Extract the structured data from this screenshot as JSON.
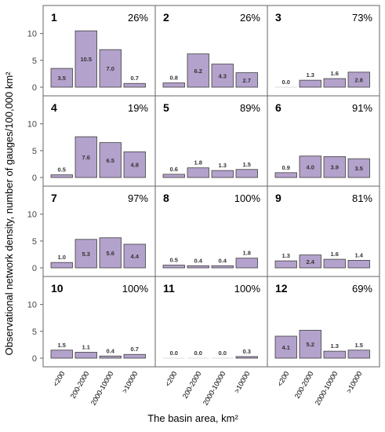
{
  "chart_data": {
    "type": "bar",
    "ylabel": "Observational network density, number of gauges/100,000 km²",
    "xlabel": "The basin area, km²",
    "categories": [
      "<200",
      "200-2000",
      "2000-10000",
      ">10000"
    ],
    "ylim": [
      0,
      12
    ],
    "yticks": [
      "0",
      "5",
      "10"
    ],
    "bar_color": "#b3a2cc",
    "bar_stroke": "#3d3d3d",
    "panels": [
      {
        "id": "1",
        "percent": "26%",
        "values": [
          3.5,
          10.5,
          7.0,
          0.7
        ],
        "labels": [
          "3.5",
          "10.5",
          "7.0",
          "0.7"
        ]
      },
      {
        "id": "2",
        "percent": "26%",
        "values": [
          0.8,
          6.2,
          4.3,
          2.7
        ],
        "labels": [
          "0.8",
          "6.2",
          "4.3",
          "2.7"
        ]
      },
      {
        "id": "3",
        "percent": "73%",
        "values": [
          0.0,
          1.3,
          1.6,
          2.8
        ],
        "labels": [
          "0.0",
          "1.3",
          "1.6",
          "2.8"
        ]
      },
      {
        "id": "4",
        "percent": "19%",
        "values": [
          0.5,
          7.6,
          6.5,
          4.8
        ],
        "labels": [
          "0.5",
          "7.6",
          "6.5",
          "4.8"
        ]
      },
      {
        "id": "5",
        "percent": "89%",
        "values": [
          0.6,
          1.8,
          1.3,
          1.5
        ],
        "labels": [
          "0.6",
          "1.8",
          "1.3",
          "1.5"
        ]
      },
      {
        "id": "6",
        "percent": "91%",
        "values": [
          0.9,
          4.0,
          3.9,
          3.5
        ],
        "labels": [
          "0.9",
          "4.0",
          "3.9",
          "3.5"
        ]
      },
      {
        "id": "7",
        "percent": "97%",
        "values": [
          1.0,
          5.3,
          5.6,
          4.4
        ],
        "labels": [
          "1.0",
          "5.3",
          "5.6",
          "4.4"
        ]
      },
      {
        "id": "8",
        "percent": "100%",
        "values": [
          0.5,
          0.4,
          0.4,
          1.8
        ],
        "labels": [
          "0.5",
          "0.4",
          "0.4",
          "1.8"
        ]
      },
      {
        "id": "9",
        "percent": "81%",
        "values": [
          1.3,
          2.4,
          1.6,
          1.4
        ],
        "labels": [
          "1.3",
          "2.4",
          "1.6",
          "1.4"
        ]
      },
      {
        "id": "10",
        "percent": "100%",
        "values": [
          1.5,
          1.1,
          0.4,
          0.7
        ],
        "labels": [
          "1.5",
          "1.1",
          "0.4",
          "0.7"
        ]
      },
      {
        "id": "11",
        "percent": "100%",
        "values": [
          0.0,
          0.0,
          0.0,
          0.3
        ],
        "labels": [
          "0.0",
          "0.0",
          "0.0",
          "0.3"
        ]
      },
      {
        "id": "12",
        "percent": "69%",
        "values": [
          4.1,
          5.2,
          1.3,
          1.5
        ],
        "labels": [
          "4.1",
          "5.2",
          "1.3",
          "1.5"
        ]
      }
    ]
  }
}
